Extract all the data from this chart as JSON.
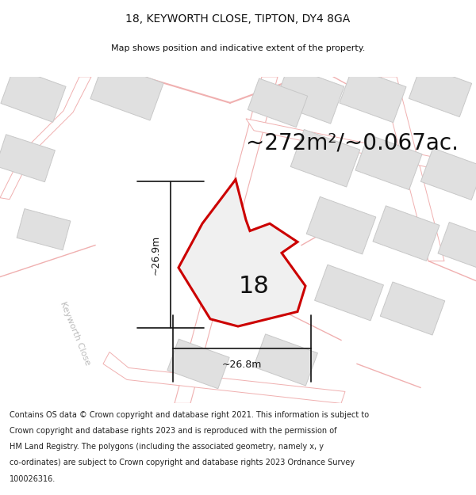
{
  "title": "18, KEYWORTH CLOSE, TIPTON, DY4 8GA",
  "subtitle": "Map shows position and indicative extent of the property.",
  "area_label": "~272m²/~0.067ac.",
  "number_label": "18",
  "dim_horizontal": "~26.8m",
  "dim_vertical": "~26.9m",
  "road_label_diag": "Keyworth Close",
  "road_label_left": "Keyworth Close",
  "footer_lines": [
    "Contains OS data © Crown copyright and database right 2021. This information is subject to Crown copyright and database rights 2023 and is reproduced with the permission of",
    "HM Land Registry. The polygons (including the associated geometry, namely x, y co-ordinates) are subject to Crown copyright and database rights 2023 Ordnance Survey",
    "100026316."
  ],
  "map_bg": "#f8f8f8",
  "plot_fill": "#f0f0f0",
  "plot_edge": "#cc0000",
  "road_line_color": "#f0b0b0",
  "bld_fill": "#e0e0e0",
  "bld_edge": "#c8c8c8",
  "dim_color": "#111111",
  "text_color": "#111111",
  "road_text_color": "#b0b0b0",
  "footer_bg": "#ffffff",
  "title_fontsize": 10,
  "subtitle_fontsize": 8,
  "area_fontsize": 20,
  "number_fontsize": 22,
  "dim_fontsize": 9,
  "road_fontsize": 8,
  "footer_fontsize": 7
}
